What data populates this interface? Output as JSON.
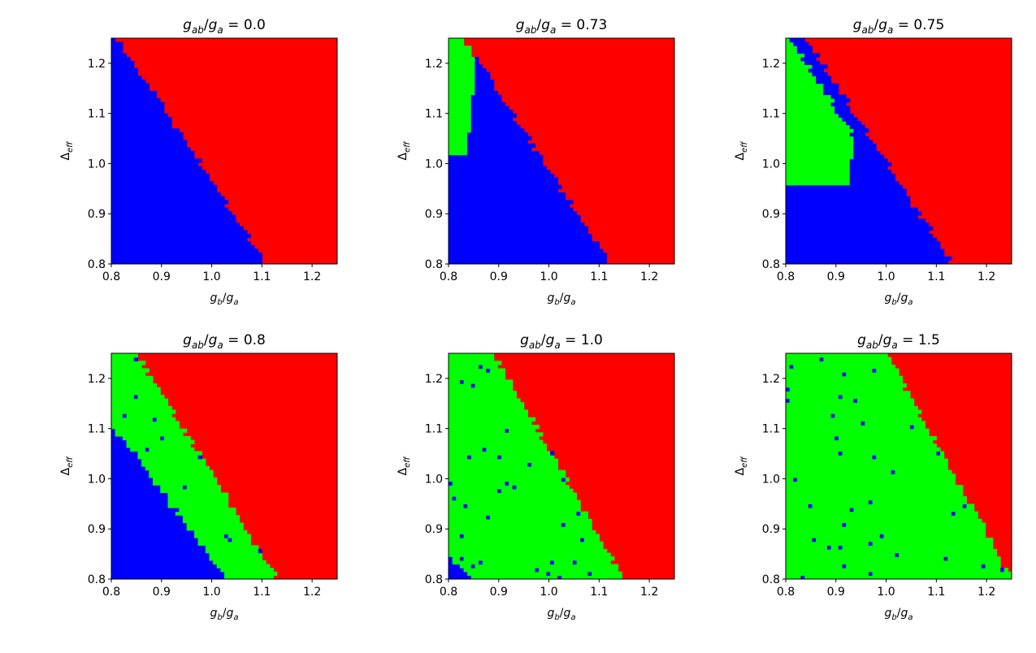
{
  "figure": {
    "xlabel_base": "g",
    "xlabel_sub1": "b",
    "xlabel_sep": "/",
    "xlabel_base2": "g",
    "xlabel_sub2": "a",
    "ylabel_base": "Δ",
    "ylabel_sub": "eff",
    "title_base": "g",
    "title_sub1": "ab",
    "title_sep": "/",
    "title_base2": "g",
    "title_sub2": "a",
    "title_eq": " = "
  },
  "colors": {
    "red": "#ff0000",
    "green": "#00ff00",
    "blue": "#0000ff"
  },
  "chart_data": [
    {
      "type": "heatmap",
      "title_value": "0.0",
      "x_range": [
        0.8,
        1.25
      ],
      "y_range": [
        0.8,
        1.25
      ],
      "x_ticks": [
        "0.8",
        "0.9",
        "1.0",
        "1.1",
        "1.2"
      ],
      "y_ticks": [
        "0.8",
        "0.9",
        "1.0",
        "1.1",
        "1.2"
      ],
      "regions": {
        "red_boundary_x_at_ymin": 1.11,
        "red_boundary_x_at_ymax": 0.81,
        "green_band_width": 0.0,
        "blue_present": true
      }
    },
    {
      "type": "heatmap",
      "title_value": "0.73",
      "x_range": [
        0.8,
        1.25
      ],
      "y_range": [
        0.8,
        1.25
      ],
      "x_ticks": [
        "0.8",
        "0.9",
        "1.0",
        "1.1",
        "1.2"
      ],
      "y_ticks": [
        "0.8",
        "0.9",
        "1.0",
        "1.1",
        "1.2"
      ],
      "regions": {
        "red_boundary_x_at_ymin": 1.12,
        "red_boundary_x_at_ymax": 0.83,
        "green_band_width": 0.04,
        "green_y_min": 1.02,
        "blue_present": true
      }
    },
    {
      "type": "heatmap",
      "title_value": "0.75",
      "x_range": [
        0.8,
        1.25
      ],
      "y_range": [
        0.8,
        1.25
      ],
      "x_ticks": [
        "0.8",
        "0.9",
        "1.0",
        "1.1",
        "1.2"
      ],
      "y_ticks": [
        "0.8",
        "0.9",
        "1.0",
        "1.1",
        "1.2"
      ],
      "regions": {
        "red_boundary_x_at_ymin": 1.13,
        "red_boundary_x_at_ymax": 0.84,
        "green_band_width": 0.06,
        "green_y_min": 0.96,
        "blue_present": true
      }
    },
    {
      "type": "heatmap",
      "title_value": "0.8",
      "x_range": [
        0.8,
        1.25
      ],
      "y_range": [
        0.8,
        1.25
      ],
      "x_ticks": [
        "0.8",
        "0.9",
        "1.0",
        "1.1",
        "1.2"
      ],
      "y_ticks": [
        "0.8",
        "0.9",
        "1.0",
        "1.1",
        "1.2"
      ],
      "regions": {
        "red_boundary_x_at_ymin": 1.13,
        "red_boundary_x_at_ymax": 0.85,
        "green_band_width": 0.1,
        "green_y_min": 0.8,
        "blue_present": true
      }
    },
    {
      "type": "heatmap",
      "title_value": "1.0",
      "x_range": [
        0.8,
        1.25
      ],
      "y_range": [
        0.8,
        1.25
      ],
      "x_ticks": [
        "0.8",
        "0.9",
        "1.0",
        "1.1",
        "1.2"
      ],
      "y_ticks": [
        "0.8",
        "0.9",
        "1.0",
        "1.1",
        "1.2"
      ],
      "regions": {
        "red_boundary_x_at_ymin": 1.15,
        "red_boundary_x_at_ymax": 0.89,
        "green_band_width": 0.3,
        "green_y_min": 0.8,
        "blue_present": true
      }
    },
    {
      "type": "heatmap",
      "title_value": "1.5",
      "x_range": [
        0.8,
        1.25
      ],
      "y_range": [
        0.8,
        1.25
      ],
      "x_ticks": [
        "0.8",
        "0.9",
        "1.0",
        "1.1",
        "1.2"
      ],
      "y_ticks": [
        "0.8",
        "0.9",
        "1.0",
        "1.1",
        "1.2"
      ],
      "regions": {
        "red_boundary_x_at_ymin": 1.25,
        "red_boundary_x_at_ymax": 1.0,
        "green_band_width": 0.45,
        "green_y_min": 0.8,
        "blue_present": false
      }
    }
  ]
}
